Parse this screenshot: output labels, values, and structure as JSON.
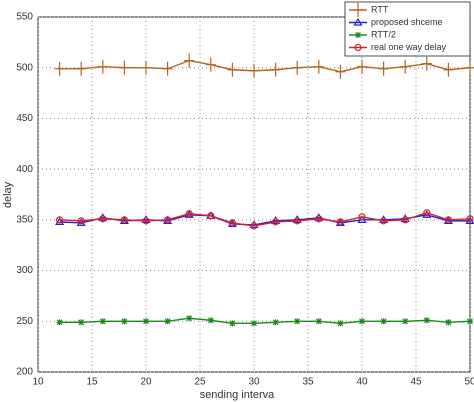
{
  "chart_data": {
    "type": "line",
    "xlabel": "sending interva",
    "ylabel": "delay",
    "x": [
      12,
      14,
      16,
      18,
      20,
      22,
      24,
      26,
      28,
      30,
      32,
      34,
      36,
      38,
      40,
      42,
      44,
      46,
      48,
      50
    ],
    "series": [
      {
        "name": "RTT",
        "color": "#b5651d",
        "marker": "plus",
        "values": [
          499,
          499,
          501,
          500,
          500,
          499,
          507,
          503,
          498,
          497,
          498,
          500,
          501,
          496,
          501,
          499,
          501,
          504,
          498,
          500
        ]
      },
      {
        "name": "proposed shceme",
        "color": "#2222cc",
        "marker": "triangle",
        "values": [
          348,
          347,
          352,
          349,
          350,
          349,
          355,
          354,
          346,
          345,
          349,
          350,
          352,
          347,
          350,
          350,
          351,
          355,
          349,
          349
        ]
      },
      {
        "name": "RTT/2",
        "color": "#1a8a1a",
        "marker": "star",
        "values": [
          249,
          249,
          250,
          250,
          250,
          250,
          253,
          251,
          248,
          248,
          249,
          250,
          250,
          248,
          250,
          250,
          250,
          251,
          249,
          250
        ]
      },
      {
        "name": "real one way delay",
        "color": "#d42030",
        "marker": "circle",
        "values": [
          350,
          349,
          351,
          350,
          349,
          350,
          356,
          354,
          347,
          344,
          348,
          349,
          351,
          348,
          353,
          349,
          350,
          357,
          350,
          351
        ]
      }
    ],
    "xlim": [
      10,
      50
    ],
    "xticks": [
      10,
      15,
      20,
      25,
      30,
      35,
      40,
      45,
      50
    ],
    "ylim": [
      200,
      550
    ],
    "yticks": [
      200,
      250,
      300,
      350,
      400,
      450,
      500,
      550
    ],
    "grid": true,
    "legend": "upper right"
  }
}
